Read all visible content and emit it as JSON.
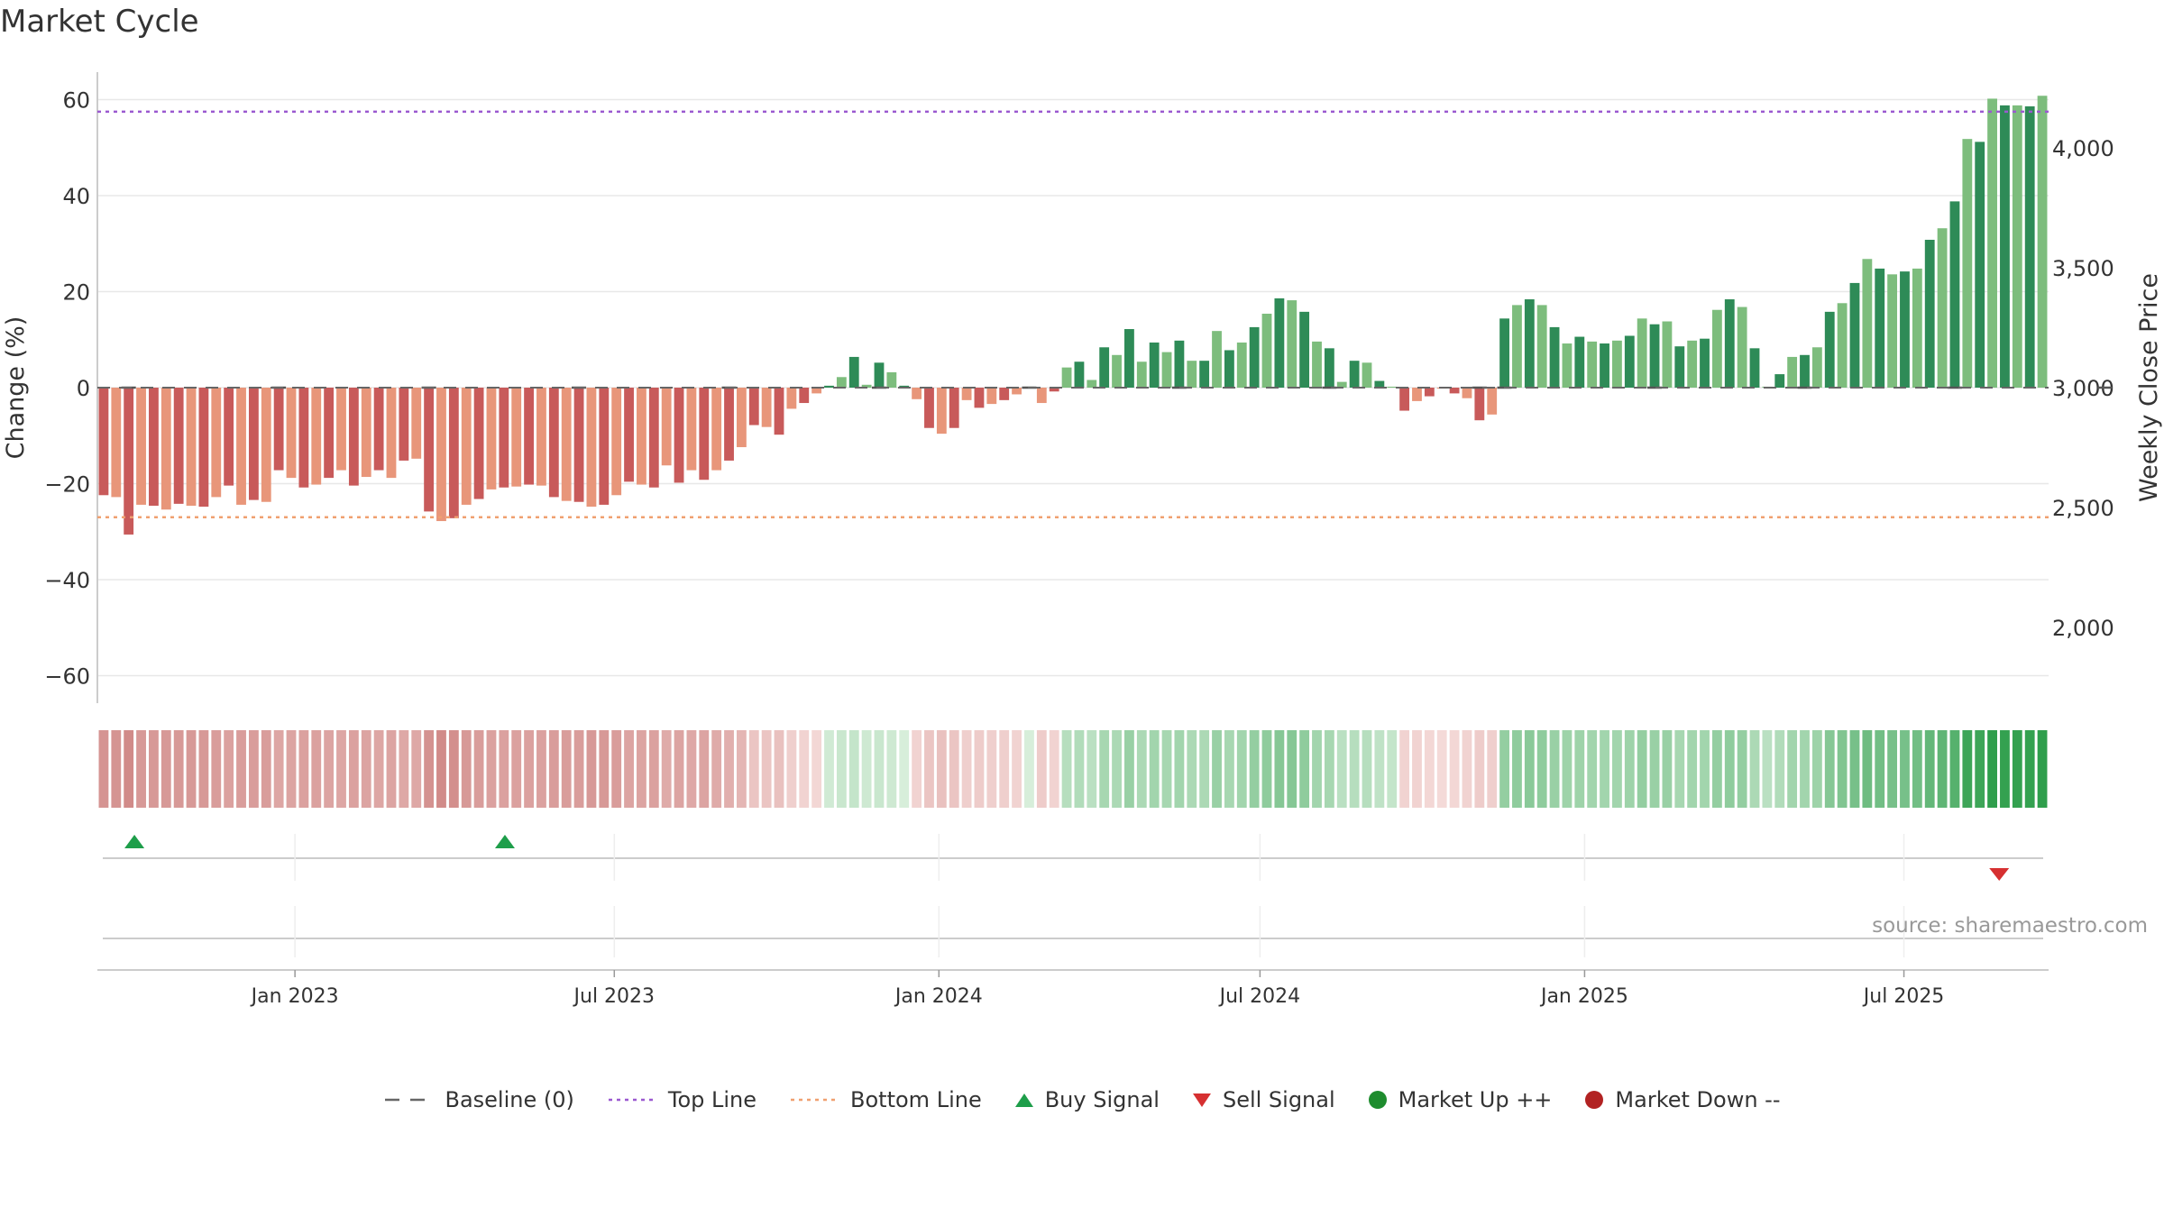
{
  "chart_data": {
    "type": "bar",
    "title": "Market Cycle",
    "ylabel": "Change (%)",
    "y2label": "Weekly Close Price",
    "ylim": [
      -65,
      66
    ],
    "yticks": [
      60,
      40,
      20,
      0,
      -20,
      -40,
      -60
    ],
    "ytick_labels": [
      "60",
      "40",
      "20",
      "0",
      "−20",
      "−40",
      "−60"
    ],
    "y2ticks": [
      4000,
      3500,
      3000,
      2500,
      2000
    ],
    "y2tick_labels": [
      "4,000",
      "3,500",
      "3,000",
      "2,500",
      "2,000"
    ],
    "y2lim": [
      1695,
      4475
    ],
    "top_line": 57.5,
    "bottom_line": -27,
    "date_range": [
      "2022-09-11",
      "2025-09-21"
    ],
    "xticks": [
      {
        "date": "2023-01-01",
        "label": "Jan 2023"
      },
      {
        "date": "2023-07-01",
        "label": "Jul 2023"
      },
      {
        "date": "2024-01-01",
        "label": "Jan 2024"
      },
      {
        "date": "2024-07-01",
        "label": "Jul 2024"
      },
      {
        "date": "2025-01-01",
        "label": "Jan 2025"
      },
      {
        "date": "2025-07-01",
        "label": "Jul 2025"
      }
    ],
    "start_date": "2022-09-11",
    "weekly_change": [
      -22.4,
      -22.8,
      -30.6,
      -24.4,
      -24.6,
      -25.4,
      -24.2,
      -24.6,
      -24.8,
      -22.8,
      -20.4,
      -24.4,
      -23.4,
      -23.8,
      -17.2,
      -18.8,
      -20.8,
      -20.2,
      -18.8,
      -17.2,
      -20.4,
      -18.6,
      -17.2,
      -18.8,
      -15.2,
      -14.8,
      -25.8,
      -27.8,
      -27.2,
      -24.4,
      -23.2,
      -21.2,
      -20.8,
      -20.6,
      -20.2,
      -20.4,
      -22.8,
      -23.6,
      -23.8,
      -24.8,
      -24.4,
      -22.4,
      -19.6,
      -20.2,
      -20.8,
      -16.2,
      -19.8,
      -17.2,
      -19.2,
      -17.2,
      -15.2,
      -12.4,
      -7.8,
      -8.2,
      -9.8,
      -4.4,
      -3.2,
      -1.2,
      0.4,
      2.2,
      6.4,
      0.6,
      5.2,
      3.2,
      0.4,
      -2.4,
      -8.4,
      -9.6,
      -8.4,
      -2.6,
      -4.2,
      -3.4,
      -2.6,
      -1.4,
      0.2,
      -3.2,
      -0.8,
      4.2,
      5.4,
      1.6,
      8.4,
      6.8,
      12.2,
      5.4,
      9.4,
      7.4,
      9.8,
      5.6,
      5.6,
      11.8,
      7.8,
      9.4,
      12.6,
      15.4,
      18.6,
      18.2,
      15.8,
      9.6,
      8.2,
      1.2,
      5.6,
      5.2,
      1.4,
      0.2,
      -4.8,
      -2.8,
      -1.8,
      -0.2,
      -1.2,
      -2.2,
      -6.8,
      -5.6,
      14.4,
      17.2,
      18.4,
      17.2,
      12.6,
      9.2,
      10.6,
      9.6,
      9.2,
      9.8,
      10.8,
      14.4,
      13.2,
      13.8,
      8.6,
      9.8,
      10.2,
      16.2,
      18.4,
      16.8,
      8.2,
      0.2,
      2.8,
      6.4,
      6.8,
      8.4,
      15.8,
      17.6,
      21.8,
      26.8,
      24.8,
      23.6,
      24.2,
      24.8,
      30.8,
      33.2,
      38.8,
      51.8,
      51.2,
      60.2,
      58.8,
      58.8,
      58.6,
      60.8
    ],
    "regime_intensity": [
      -0.55,
      -0.55,
      -0.6,
      -0.52,
      -0.52,
      -0.52,
      -0.52,
      -0.52,
      -0.52,
      -0.5,
      -0.48,
      -0.5,
      -0.5,
      -0.5,
      -0.45,
      -0.46,
      -0.48,
      -0.48,
      -0.46,
      -0.45,
      -0.48,
      -0.46,
      -0.45,
      -0.46,
      -0.44,
      -0.44,
      -0.56,
      -0.6,
      -0.58,
      -0.52,
      -0.5,
      -0.48,
      -0.48,
      -0.48,
      -0.48,
      -0.48,
      -0.5,
      -0.5,
      -0.5,
      -0.52,
      -0.52,
      -0.5,
      -0.46,
      -0.46,
      -0.48,
      -0.42,
      -0.46,
      -0.44,
      -0.46,
      -0.42,
      -0.4,
      -0.36,
      -0.28,
      -0.28,
      -0.3,
      -0.22,
      -0.2,
      -0.18,
      0.25,
      0.28,
      0.3,
      0.26,
      0.28,
      0.26,
      0.22,
      -0.2,
      -0.28,
      -0.3,
      -0.28,
      -0.22,
      -0.24,
      -0.22,
      -0.22,
      -0.2,
      0.22,
      -0.24,
      -0.2,
      0.36,
      0.38,
      0.34,
      0.42,
      0.4,
      0.48,
      0.4,
      0.44,
      0.42,
      0.44,
      0.4,
      0.4,
      0.48,
      0.42,
      0.44,
      0.5,
      0.52,
      0.56,
      0.56,
      0.52,
      0.44,
      0.42,
      0.34,
      0.36,
      0.36,
      0.32,
      0.3,
      -0.2,
      -0.2,
      -0.18,
      -0.16,
      -0.18,
      -0.2,
      -0.24,
      -0.22,
      0.5,
      0.52,
      0.54,
      0.52,
      0.48,
      0.46,
      0.46,
      0.44,
      0.44,
      0.44,
      0.46,
      0.5,
      0.48,
      0.48,
      0.42,
      0.44,
      0.44,
      0.5,
      0.52,
      0.5,
      0.4,
      0.34,
      0.38,
      0.44,
      0.44,
      0.46,
      0.56,
      0.58,
      0.62,
      0.66,
      0.64,
      0.62,
      0.62,
      0.64,
      0.7,
      0.72,
      0.76,
      0.86,
      0.86,
      0.92,
      0.9,
      0.9,
      0.9,
      0.92
    ],
    "price_marker_weeks": [
      2,
      14,
      26,
      38,
      50,
      62,
      74,
      86,
      98,
      110,
      112,
      124,
      136,
      148,
      160
    ],
    "buy_signals": [
      "2022-10-02",
      "2023-04-30"
    ],
    "sell_signals": [
      "2025-08-24"
    ],
    "source": "source: sharemaestro.com",
    "legend": [
      {
        "label": "Baseline (0)",
        "kind": "dash",
        "color": "#666666"
      },
      {
        "label": "Top Line",
        "kind": "dotted",
        "color": "#9b59d0"
      },
      {
        "label": "Bottom Line",
        "kind": "dotted",
        "color": "#f0a070"
      },
      {
        "label": "Buy Signal",
        "kind": "triangle-up",
        "color": "#1e9e4a"
      },
      {
        "label": "Sell Signal",
        "kind": "triangle-down",
        "color": "#d63031"
      },
      {
        "label": "Market Up ++",
        "kind": "circle",
        "color": "#1e8c2e"
      },
      {
        "label": "Market Down --",
        "kind": "circle",
        "color": "#b22222"
      }
    ]
  }
}
